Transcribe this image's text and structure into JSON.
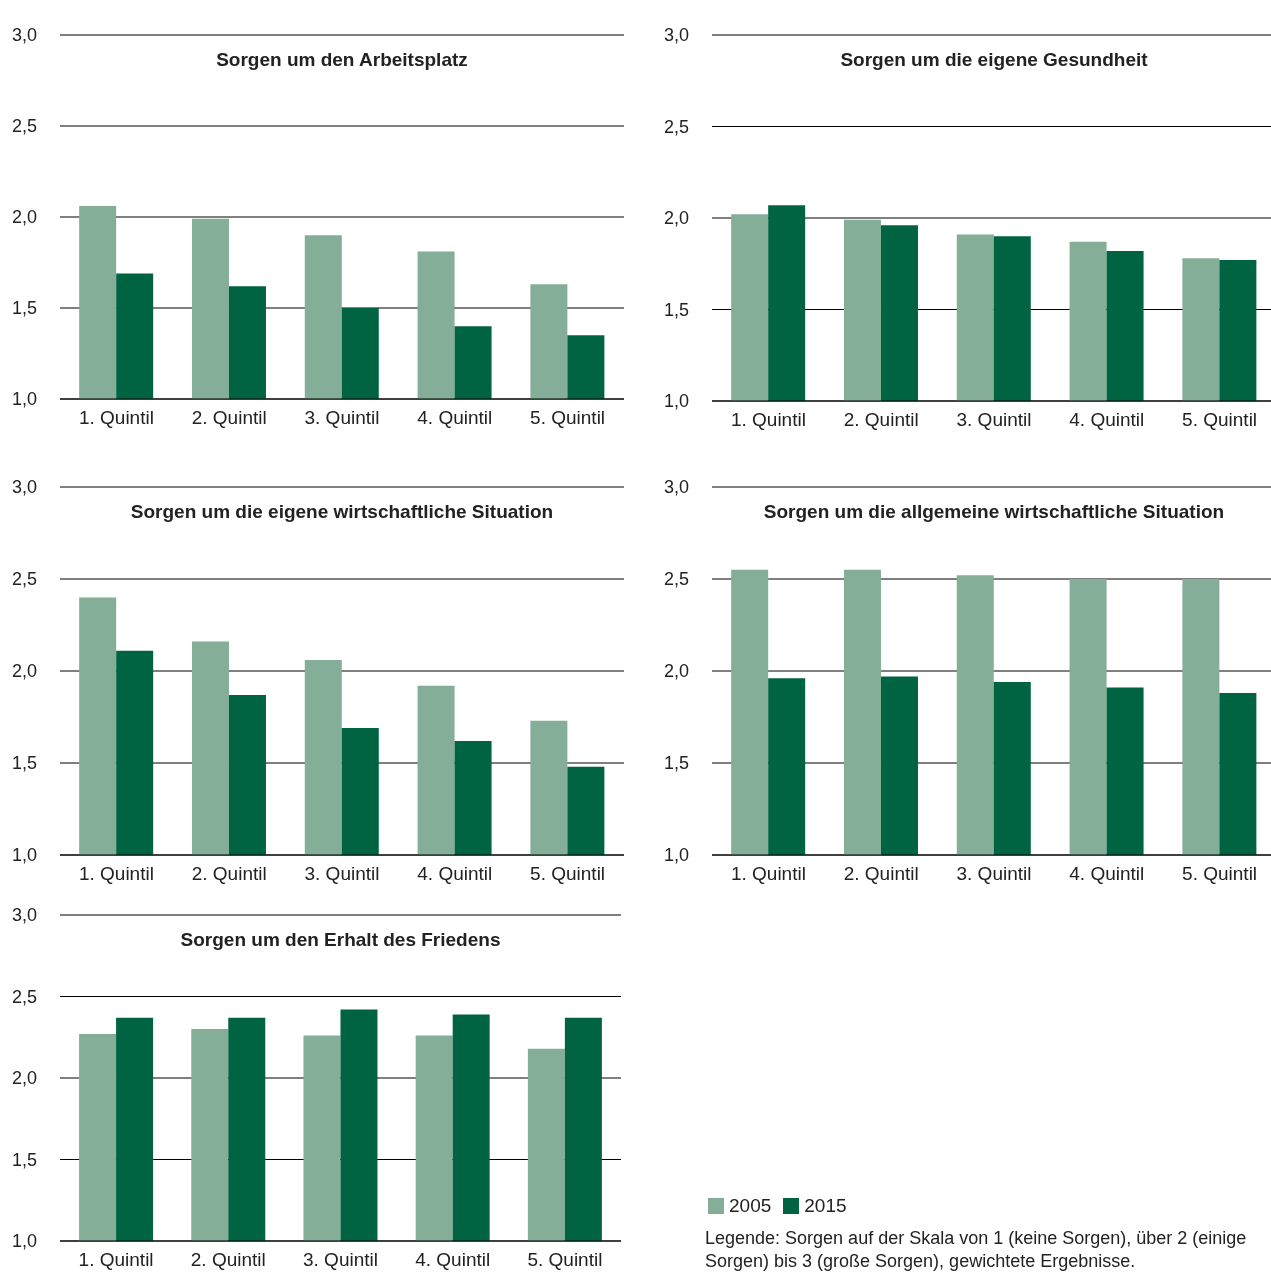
{
  "chart_data": [
    {
      "type": "bar",
      "title": "Sorgen um den Arbeitsplatz",
      "categories": [
        "1. Quintil",
        "2. Quintil",
        "3. Quintil",
        "4. Quintil",
        "5. Quintil"
      ],
      "series": [
        {
          "color": "#84ae98",
          "values": [
            2.06,
            1.99,
            1.9,
            1.81,
            1.63
          ]
        },
        {
          "color": "#006442",
          "values": [
            1.69,
            1.62,
            1.5,
            1.4,
            1.35
          ]
        }
      ],
      "ylim": [
        1,
        3
      ],
      "yticks": [
        {
          "value": 1,
          "label": "1,0"
        },
        {
          "value": 1.5,
          "label": "1,5"
        },
        {
          "value": 2,
          "label": "2,0"
        },
        {
          "value": 2.5,
          "label": "2,5"
        },
        {
          "value": 3,
          "label": "3,0"
        }
      ],
      "grid": "y"
    },
    {
      "type": "bar",
      "title": "Sorgen um die eigene Gesundheit",
      "categories": [
        "1. Quintil",
        "2. Quintil",
        "3. Quintil",
        "4. Quintil",
        "5. Quintil"
      ],
      "series": [
        {
          "color": "#84ae98",
          "values": [
            2.02,
            1.99,
            1.91,
            1.87,
            1.78
          ]
        },
        {
          "color": "#006442",
          "values": [
            2.07,
            1.96,
            1.9,
            1.82,
            1.77
          ]
        }
      ],
      "ylim": [
        1,
        3
      ],
      "yticks": [
        {
          "value": 1,
          "label": "1,0"
        },
        {
          "value": 1.5,
          "label": "1,5"
        },
        {
          "value": 2,
          "label": "2,0"
        },
        {
          "value": 2.5,
          "label": "2,5"
        },
        {
          "value": 3,
          "label": "3,0"
        }
      ],
      "grid": "y"
    },
    {
      "type": "bar",
      "title": "Sorgen um die eigene wirtschaftliche Situation",
      "categories": [
        "1. Quintil",
        "2. Quintil",
        "3. Quintil",
        "4. Quintil",
        "5. Quintil"
      ],
      "series": [
        {
          "color": "#84ae98",
          "values": [
            2.4,
            2.16,
            2.06,
            1.92,
            1.73
          ]
        },
        {
          "color": "#006442",
          "values": [
            2.11,
            1.87,
            1.69,
            1.62,
            1.48
          ]
        }
      ],
      "ylim": [
        1,
        3
      ],
      "yticks": [
        {
          "value": 1,
          "label": "1,0"
        },
        {
          "value": 1.5,
          "label": "1,5"
        },
        {
          "value": 2,
          "label": "2,0"
        },
        {
          "value": 2.5,
          "label": "2,5"
        },
        {
          "value": 3,
          "label": "3,0"
        }
      ],
      "grid": "y"
    },
    {
      "type": "bar",
      "title": "Sorgen um die allgemeine wirtschaftliche Situation",
      "categories": [
        "1. Quintil",
        "2. Quintil",
        "3. Quintil",
        "4. Quintil",
        "5. Quintil"
      ],
      "series": [
        {
          "color": "#84ae98",
          "values": [
            2.55,
            2.55,
            2.52,
            2.5,
            2.5
          ]
        },
        {
          "color": "#006442",
          "values": [
            1.96,
            1.97,
            1.94,
            1.91,
            1.88
          ]
        }
      ],
      "ylim": [
        1,
        3
      ],
      "yticks": [
        {
          "value": 1,
          "label": "1,0"
        },
        {
          "value": 1.5,
          "label": "1,5"
        },
        {
          "value": 2,
          "label": "2,0"
        },
        {
          "value": 2.5,
          "label": "2,5"
        },
        {
          "value": 3,
          "label": "3,0"
        }
      ],
      "grid": "y"
    },
    {
      "type": "bar",
      "title": "Sorgen um den Erhalt des Friedens",
      "categories": [
        "1. Quintil",
        "2. Quintil",
        "3. Quintil",
        "4. Quintil",
        "5. Quintil"
      ],
      "series": [
        {
          "name": "2005",
          "color": "#84ae98",
          "values": [
            2.27,
            2.3,
            2.26,
            2.26,
            2.18
          ]
        },
        {
          "name": "2015",
          "color": "#006442",
          "values": [
            2.37,
            2.37,
            2.42,
            2.39,
            2.37
          ]
        }
      ],
      "ylim": [
        1,
        3
      ],
      "yticks": [
        {
          "value": 1,
          "label": "1,0"
        },
        {
          "value": 1.5,
          "label": "1,5"
        },
        {
          "value": 2,
          "label": "2,0"
        },
        {
          "value": 2.5,
          "label": "2,5"
        },
        {
          "value": 3,
          "label": "3,0"
        }
      ],
      "grid": "y",
      "legend": "right",
      "annotations": [
        "Legende: Sorgen auf der Skala von 1 (keine Sorgen), über 2 (einige Sorgen) bis 3 (große Sorgen), gewichtete Ergebnisse."
      ]
    }
  ]
}
